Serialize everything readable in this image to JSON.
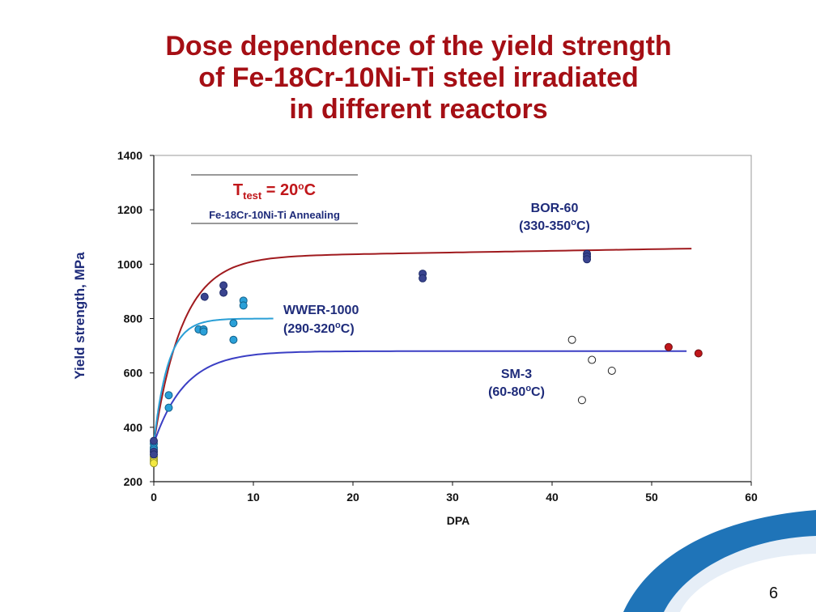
{
  "slide": {
    "title_lines": [
      "Dose dependence of the yield strength",
      "of Fe-18Cr-10Ni-Ti steel irradiated",
      "in different reactors"
    ],
    "page_number": "6"
  },
  "chart_data": {
    "type": "scatter",
    "xlabel": "DPA",
    "ylabel": "Yield strength, MPa",
    "xlim": [
      0,
      60
    ],
    "ylim": [
      200,
      1400
    ],
    "x_ticks": [
      0,
      10,
      20,
      30,
      40,
      50,
      60
    ],
    "y_ticks": [
      200,
      400,
      600,
      800,
      1000,
      1200,
      1400
    ],
    "grid": false,
    "note": {
      "main": "T",
      "sub_script": "test",
      "main_rest": " = 20",
      "sup": "o",
      "unit": "C",
      "material": "Fe-18Cr-10Ni-Ti  Annealing"
    },
    "annotations": [
      {
        "name": "BOR-60",
        "temp_a": "(330-350",
        "sup": "o",
        "temp_b": "C)",
        "color": "#1e2b7a"
      },
      {
        "name": "WWER-1000",
        "temp_a": "(290-320",
        "sup": "o",
        "temp_b": "C)",
        "color": "#1e2b7a"
      },
      {
        "name": "SM-3",
        "temp_a": "(60-80",
        "sup": "o",
        "temp_b": "C)",
        "color": "#1e2b7a"
      }
    ],
    "fits": [
      {
        "color": "#a01a1e",
        "x0": 0,
        "x1": 54,
        "y0": 340,
        "ymax": 1025,
        "k": 0.35
      },
      {
        "color": "#2a9fd6",
        "x0": 0,
        "x1": 12,
        "y0": 340,
        "ymax": 800,
        "k": 0.7
      },
      {
        "color": "#3b3fc4",
        "x0": 0,
        "x1": 53.5,
        "y0": 340,
        "ymax": 680,
        "k": 0.32
      }
    ],
    "series": [
      {
        "color": "#3a448f",
        "stroke": "#1e2b6a",
        "points": [
          [
            5.1,
            880
          ],
          [
            7,
            922
          ],
          [
            7,
            895
          ],
          [
            27,
            965
          ],
          [
            27,
            948
          ],
          [
            43.5,
            1038
          ],
          [
            43.5,
            1028
          ],
          [
            43.5,
            1018
          ]
        ]
      },
      {
        "color": "#2aa0d8",
        "stroke": "#12608a",
        "points": [
          [
            0,
            340
          ],
          [
            0,
            325
          ],
          [
            0,
            318
          ],
          [
            1.5,
            518
          ],
          [
            1.5,
            472
          ],
          [
            4.5,
            760
          ],
          [
            5,
            760
          ],
          [
            5,
            752
          ],
          [
            8,
            783
          ],
          [
            8,
            722
          ],
          [
            9,
            866
          ],
          [
            9,
            848
          ]
        ]
      },
      {
        "color": "#ffffff",
        "stroke": "#222222",
        "points": [
          [
            42,
            722
          ],
          [
            44,
            648
          ],
          [
            46,
            608
          ],
          [
            43,
            500
          ]
        ]
      },
      {
        "color": "#c0161a",
        "stroke": "#6a0d10",
        "points": [
          [
            51.7,
            695
          ],
          [
            54.7,
            672
          ]
        ]
      },
      {
        "color": "#f3e840",
        "stroke": "#9a9a2a",
        "points": [
          [
            0,
            290
          ],
          [
            0,
            282
          ],
          [
            0,
            275
          ],
          [
            0,
            268
          ]
        ]
      },
      {
        "color": "#3a448f",
        "stroke": "#1e2b6a",
        "points": [
          [
            0,
            350
          ],
          [
            0,
            310
          ],
          [
            0,
            300
          ]
        ]
      }
    ]
  }
}
